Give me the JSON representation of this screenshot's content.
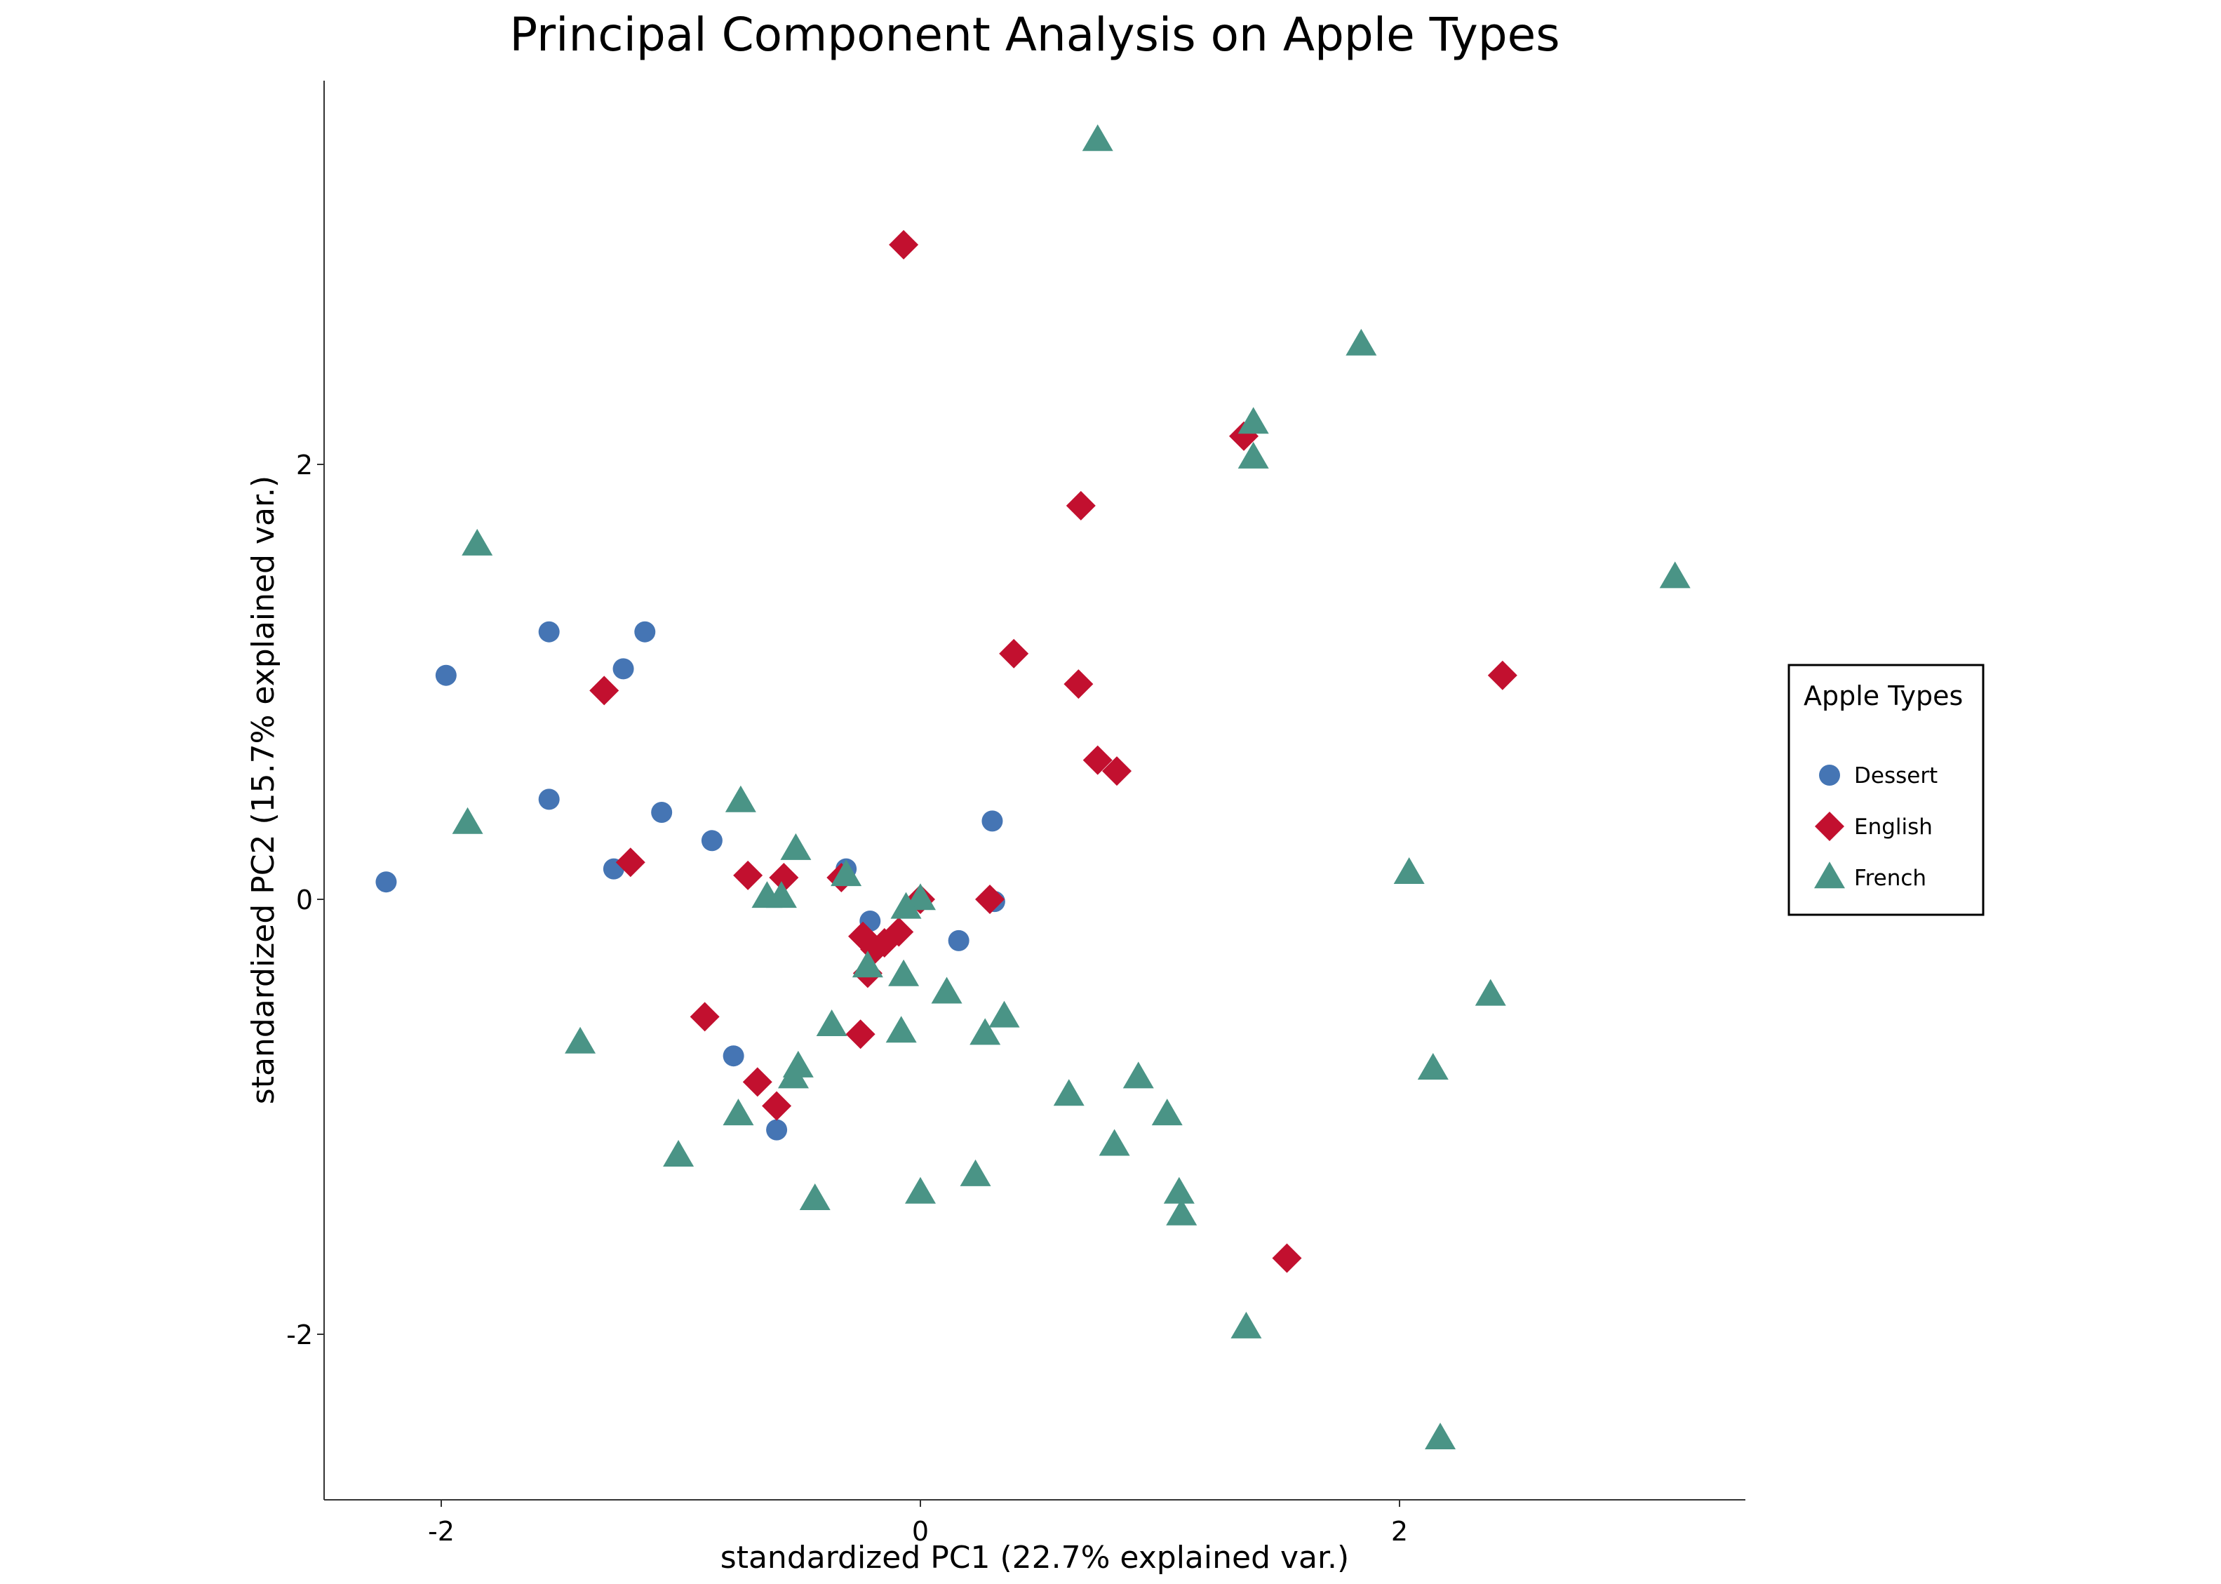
{
  "chart_data": {
    "type": "scatter",
    "title": "Principal Component Analysis on Apple Types",
    "xlabel": "standardized PC1 (22.7% explained var.)",
    "ylabel": "standardized PC2 (15.7% explained var.)",
    "xlim": [
      -2.5,
      3.45
    ],
    "ylim": [
      -2.8,
      3.75
    ],
    "xticks": [
      -2,
      0,
      2
    ],
    "xtick_labels": [
      "-2",
      "0",
      "2"
    ],
    "yticks": [
      -2,
      0,
      2
    ],
    "ytick_labels": [
      "-2",
      "0",
      "2"
    ],
    "grid": false,
    "legend": {
      "title": "Apple Types",
      "placement": "right"
    },
    "colors": {
      "Dessert": "#4575b4",
      "English": "#c2102f",
      "French": "#4a9486"
    },
    "series": [
      {
        "name": "Dessert",
        "marker": "circle",
        "points": [
          [
            -2.23,
            0.08
          ],
          [
            -1.98,
            1.03
          ],
          [
            -1.55,
            1.23
          ],
          [
            -1.55,
            0.46
          ],
          [
            -1.24,
            1.06
          ],
          [
            -1.15,
            1.23
          ],
          [
            -1.28,
            0.14
          ],
          [
            -1.08,
            0.4
          ],
          [
            -0.87,
            0.27
          ],
          [
            -0.31,
            0.14
          ],
          [
            -0.78,
            -0.72
          ],
          [
            -0.6,
            -1.06
          ],
          [
            -0.21,
            -0.1
          ],
          [
            0.16,
            -0.19
          ],
          [
            0.3,
            0.36
          ],
          [
            0.31,
            -0.01
          ]
        ]
      },
      {
        "name": "English",
        "marker": "diamond",
        "points": [
          [
            -0.07,
            3.01
          ],
          [
            1.35,
            2.13
          ],
          [
            0.67,
            1.81
          ],
          [
            0.39,
            1.13
          ],
          [
            0.66,
            0.99
          ],
          [
            0.74,
            0.64
          ],
          [
            0.82,
            0.59
          ],
          [
            2.43,
            1.03
          ],
          [
            -1.32,
            0.96
          ],
          [
            -1.21,
            0.17
          ],
          [
            -0.72,
            0.11
          ],
          [
            -0.57,
            0.1
          ],
          [
            -0.33,
            0.1
          ],
          [
            0.0,
            0.0
          ],
          [
            0.29,
            0.0
          ],
          [
            -0.24,
            -0.17
          ],
          [
            -0.15,
            -0.2
          ],
          [
            -0.19,
            -0.23
          ],
          [
            -0.09,
            -0.15
          ],
          [
            -0.22,
            -0.34
          ],
          [
            -0.9,
            -0.54
          ],
          [
            -0.25,
            -0.62
          ],
          [
            -0.68,
            -0.84
          ],
          [
            -0.6,
            -0.95
          ],
          [
            1.53,
            -1.65
          ]
        ]
      },
      {
        "name": "French",
        "marker": "triangle",
        "points": [
          [
            0.74,
            3.49
          ],
          [
            1.84,
            2.55
          ],
          [
            1.39,
            2.19
          ],
          [
            1.39,
            2.03
          ],
          [
            3.15,
            1.48
          ],
          [
            -1.85,
            1.63
          ],
          [
            -1.89,
            0.35
          ],
          [
            -0.75,
            0.45
          ],
          [
            -0.52,
            0.23
          ],
          [
            -0.31,
            0.11
          ],
          [
            -0.64,
            0.01
          ],
          [
            -0.58,
            0.01
          ],
          [
            0.0,
            0.0
          ],
          [
            -0.06,
            -0.04
          ],
          [
            2.04,
            0.12
          ],
          [
            -0.22,
            -0.31
          ],
          [
            -0.07,
            -0.35
          ],
          [
            0.11,
            -0.43
          ],
          [
            -0.37,
            -0.58
          ],
          [
            0.35,
            -0.54
          ],
          [
            -0.08,
            -0.61
          ],
          [
            0.27,
            -0.62
          ],
          [
            -1.42,
            -0.66
          ],
          [
            -0.53,
            -0.82
          ],
          [
            -0.51,
            -0.77
          ],
          [
            0.62,
            -0.9
          ],
          [
            0.91,
            -0.82
          ],
          [
            1.03,
            -0.99
          ],
          [
            -0.76,
            -0.99
          ],
          [
            0.81,
            -1.13
          ],
          [
            -1.01,
            -1.18
          ],
          [
            0.23,
            -1.27
          ],
          [
            0.0,
            -1.35
          ],
          [
            -0.44,
            -1.38
          ],
          [
            1.08,
            -1.35
          ],
          [
            1.09,
            -1.45
          ],
          [
            2.38,
            -0.44
          ],
          [
            2.14,
            -0.78
          ],
          [
            1.36,
            -1.97
          ],
          [
            2.17,
            -2.48
          ]
        ]
      }
    ]
  }
}
